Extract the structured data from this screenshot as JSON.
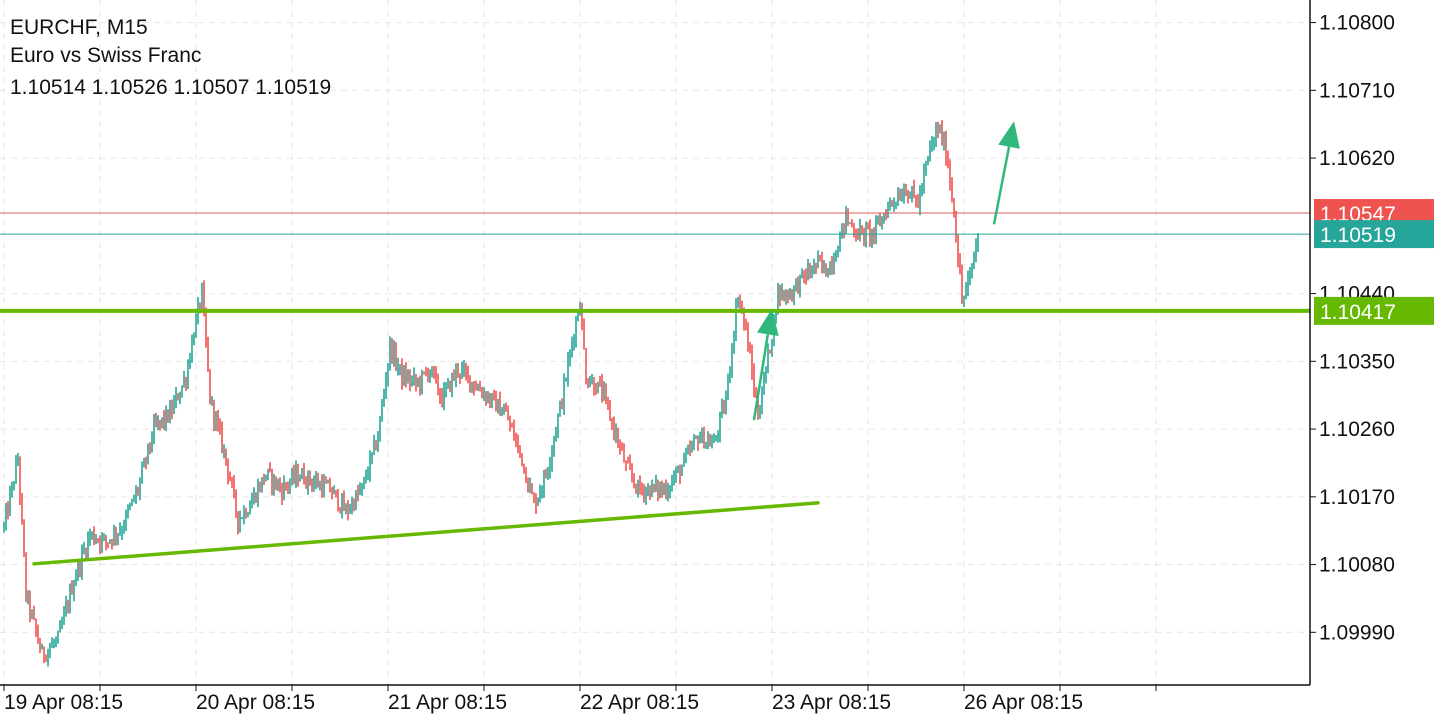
{
  "header": {
    "symbol_line": "EURCHF, M15",
    "description": "Euro vs Swiss Franc",
    "ohlc": "1.10514 1.10526 1.10507 1.10519"
  },
  "colors": {
    "bull": "#26a69a",
    "bear": "#ef5350",
    "grid": "#e6e6e6",
    "support_line": "#66b800",
    "bid_line": "#e05b5b",
    "current_line": "#26a69a",
    "arrow": "#2fb87a"
  },
  "chart_data": {
    "type": "candlestick",
    "symbol": "EURCHF",
    "timeframe": "M15",
    "ylim": [
      1.0992,
      1.1083
    ],
    "y_ticks": [
      "1.10800",
      "1.10710",
      "1.10620",
      "1.10440",
      "1.10350",
      "1.10260",
      "1.10170",
      "1.10080",
      "1.09990"
    ],
    "x_ticks": [
      "19 Apr 08:15",
      "20 Apr 08:15",
      "21 Apr 08:15",
      "22 Apr 08:15",
      "23 Apr 08:15",
      "26 Apr 08:15"
    ],
    "price_tags": [
      {
        "label": "1.10547",
        "value": 1.10547,
        "color": "#ef5350"
      },
      {
        "label": "1.10519",
        "value": 1.10519,
        "color": "#26a69a"
      },
      {
        "label": "1.10417",
        "value": 1.10417,
        "color": "#66b800"
      }
    ],
    "horizontal_lines": [
      {
        "value": 1.10547,
        "color": "#e05b5b",
        "width": 1
      },
      {
        "value": 1.10519,
        "color": "#26a69a",
        "width": 1
      },
      {
        "value": 1.10417,
        "color": "#66b800",
        "width": 4
      }
    ],
    "trendline": {
      "from": [
        "19 Apr 12:00",
        1.10081
      ],
      "to": [
        "23 Apr 14:00",
        1.10162
      ]
    },
    "arrows": [
      {
        "from": [
          "23 Apr 06:00",
          1.10272
        ],
        "to": [
          "23 Apr 08:15",
          1.1042
        ]
      },
      {
        "from": [
          "26 Apr 12:00",
          1.10532
        ],
        "to": [
          "26 Apr 14:30",
          1.10669
        ]
      }
    ],
    "price_path": [
      [
        "19 Apr 08:15",
        1.1013
      ],
      [
        "19 Apr 10:00",
        1.1022
      ],
      [
        "19 Apr 11:00",
        1.1004
      ],
      [
        "19 Apr 13:00",
        1.0996
      ],
      [
        "19 Apr 15:00",
        1.0998
      ],
      [
        "19 Apr 17:00",
        1.1006
      ],
      [
        "19 Apr 19:00",
        1.1012
      ],
      [
        "19 Apr 21:00",
        1.1011
      ],
      [
        "19 Apr 23:00",
        1.1013
      ],
      [
        "20 Apr 01:00",
        1.1018
      ],
      [
        "20 Apr 03:00",
        1.1026
      ],
      [
        "20 Apr 05:00",
        1.1028
      ],
      [
        "20 Apr 07:00",
        1.1033
      ],
      [
        "20 Apr 08:00",
        1.1039
      ],
      [
        "20 Apr 09:00",
        1.1044
      ],
      [
        "20 Apr 10:00",
        1.103
      ],
      [
        "20 Apr 12:00",
        1.1022
      ],
      [
        "20 Apr 13:30",
        1.1014
      ],
      [
        "20 Apr 15:00",
        1.1016
      ],
      [
        "20 Apr 17:00",
        1.102
      ],
      [
        "20 Apr 19:00",
        1.1018
      ],
      [
        "20 Apr 21:00",
        1.102
      ],
      [
        "20 Apr 23:00",
        1.1019
      ],
      [
        "21 Apr 01:00",
        1.1018
      ],
      [
        "21 Apr 03:00",
        1.1015
      ],
      [
        "21 Apr 05:00",
        1.1018
      ],
      [
        "21 Apr 07:00",
        1.1025
      ],
      [
        "21 Apr 08:30",
        1.1037
      ],
      [
        "21 Apr 10:00",
        1.1033
      ],
      [
        "21 Apr 12:00",
        1.1032
      ],
      [
        "21 Apr 13:30",
        1.1034
      ],
      [
        "21 Apr 15:00",
        1.103
      ],
      [
        "21 Apr 17:00",
        1.1034
      ],
      [
        "21 Apr 19:00",
        1.1032
      ],
      [
        "21 Apr 21:00",
        1.103
      ],
      [
        "21 Apr 23:00",
        1.1028
      ],
      [
        "22 Apr 01:00",
        1.1022
      ],
      [
        "22 Apr 02:30",
        1.1016
      ],
      [
        "22 Apr 04:00",
        1.102
      ],
      [
        "22 Apr 06:00",
        1.103
      ],
      [
        "22 Apr 07:30",
        1.1039
      ],
      [
        "22 Apr 08:15",
        1.1043
      ],
      [
        "22 Apr 09:00",
        1.1033
      ],
      [
        "22 Apr 11:00",
        1.1031
      ],
      [
        "22 Apr 12:30",
        1.1026
      ],
      [
        "22 Apr 14:00",
        1.1021
      ],
      [
        "22 Apr 15:30",
        1.1018
      ],
      [
        "22 Apr 17:00",
        1.1018
      ],
      [
        "22 Apr 19:00",
        1.1018
      ],
      [
        "22 Apr 21:00",
        1.1021
      ],
      [
        "22 Apr 23:00",
        1.1025
      ],
      [
        "23 Apr 01:00",
        1.1024
      ],
      [
        "23 Apr 02:30",
        1.103
      ],
      [
        "23 Apr 04:00",
        1.1044
      ],
      [
        "23 Apr 05:00",
        1.1039
      ],
      [
        "23 Apr 06:30",
        1.1028
      ],
      [
        "23 Apr 08:00",
        1.1037
      ],
      [
        "23 Apr 09:00",
        1.1044
      ],
      [
        "23 Apr 10:30",
        1.1044
      ],
      [
        "23 Apr 12:00",
        1.1046
      ],
      [
        "23 Apr 14:00",
        1.1048
      ],
      [
        "23 Apr 15:00",
        1.1047
      ],
      [
        "23 Apr 16:00",
        1.1049
      ],
      [
        "23 Apr 17:30",
        1.1054
      ],
      [
        "23 Apr 19:00",
        1.1052
      ],
      [
        "23 Apr 21:00",
        1.1052
      ],
      [
        "23 Apr 23:00",
        1.1056
      ],
      [
        "26 Apr 01:00",
        1.1058
      ],
      [
        "26 Apr 02:30",
        1.1056
      ],
      [
        "26 Apr 04:00",
        1.1063
      ],
      [
        "26 Apr 05:00",
        1.1066
      ],
      [
        "26 Apr 06:00",
        1.1063
      ],
      [
        "26 Apr 07:00",
        1.1055
      ],
      [
        "26 Apr 08:00",
        1.1043
      ],
      [
        "26 Apr 09:00",
        1.1046
      ],
      [
        "26 Apr 10:00",
        1.10519
      ]
    ],
    "last": {
      "open": 1.10514,
      "high": 1.10526,
      "low": 1.10507,
      "close": 1.10519
    }
  }
}
